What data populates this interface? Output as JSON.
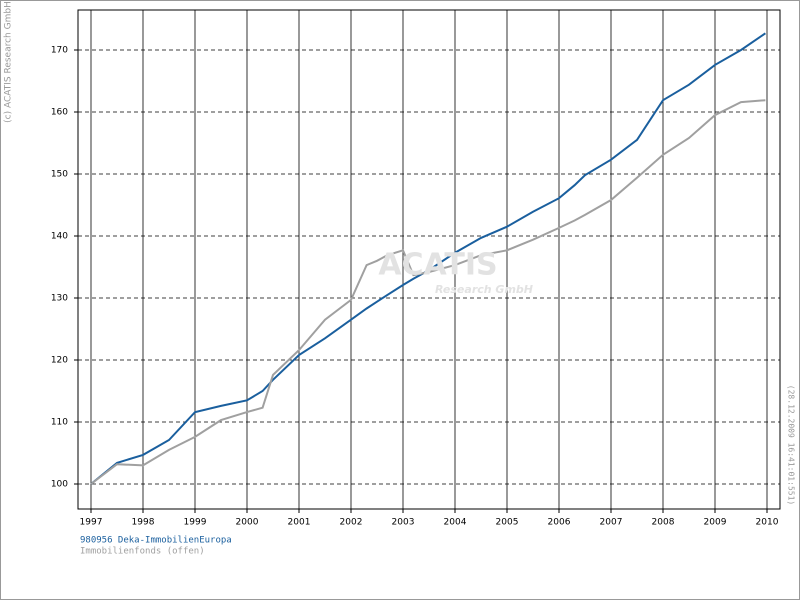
{
  "chart_data": {
    "type": "line",
    "watermark": [
      "ACATIS",
      "Research GmbH"
    ],
    "copyright": "(c) ACATIS Research GmbH",
    "timestamp": "(28.12.2009 16:41:01:551)",
    "x": [
      1997.0,
      1997.5,
      1998.0,
      1998.5,
      1999.0,
      1999.5,
      2000.0,
      2000.3,
      2000.5,
      2001.0,
      2001.5,
      2002.0,
      2002.3,
      2002.5,
      2002.7,
      2003.0,
      2003.2,
      2003.5,
      2004.0,
      2004.5,
      2005.0,
      2005.5,
      2006.0,
      2006.3,
      2006.5,
      2007.0,
      2007.5,
      2008.0,
      2008.5,
      2009.0,
      2009.5,
      2009.97
    ],
    "series": [
      {
        "name": "980956 Deka-ImmobilienEuropa",
        "color": "#1a5f9e",
        "values": [
          100,
          103.4,
          104.7,
          107.1,
          111.6,
          112.6,
          113.5,
          115.0,
          116.8,
          120.8,
          123.5,
          126.5,
          128.3,
          129.4,
          130.5,
          132.1,
          133.1,
          134.5,
          137.3,
          139.7,
          141.5,
          143.9,
          146.1,
          148.2,
          149.8,
          152.3,
          155.5,
          161.9,
          164.4,
          167.6,
          170.0,
          172.7
        ]
      },
      {
        "name": "Immobilienfonds (offen)",
        "color": "#a0a0a0",
        "values": [
          100,
          103.2,
          103.0,
          105.5,
          107.6,
          110.3,
          111.6,
          112.3,
          117.6,
          121.6,
          126.5,
          129.7,
          135.3,
          136.0,
          136.9,
          137.7,
          133.7,
          134.2,
          135.3,
          136.9,
          137.7,
          139.4,
          141.3,
          142.5,
          143.4,
          145.8,
          149.4,
          153.1,
          155.8,
          159.5,
          161.6,
          161.9
        ]
      }
    ],
    "xlim": [
      1996.75,
      2010.25
    ],
    "xticks": [
      1997,
      1998,
      1999,
      2000,
      2001,
      2002,
      2003,
      2004,
      2005,
      2006,
      2007,
      2008,
      2009,
      2010
    ],
    "ylim": [
      95.97,
      176.45
    ],
    "yticks": [
      100,
      110,
      120,
      130,
      140,
      150,
      160,
      170
    ],
    "grid": true
  }
}
